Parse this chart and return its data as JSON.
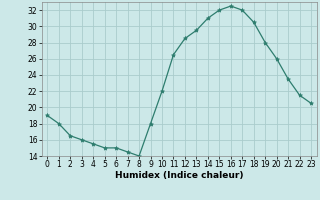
{
  "x": [
    0,
    1,
    2,
    3,
    4,
    5,
    6,
    7,
    8,
    9,
    10,
    11,
    12,
    13,
    14,
    15,
    16,
    17,
    18,
    19,
    20,
    21,
    22,
    23
  ],
  "y": [
    19,
    18,
    16.5,
    16,
    15.5,
    15,
    15,
    14.5,
    14,
    18,
    22,
    26.5,
    28.5,
    29.5,
    31,
    32,
    32.5,
    32,
    30.5,
    28,
    26,
    23.5,
    21.5,
    20.5
  ],
  "line_color": "#2e7d6e",
  "marker": "*",
  "marker_size": 3,
  "bg_color": "#cce8e8",
  "grid_color": "#aacccc",
  "xlabel": "Humidex (Indice chaleur)",
  "ylim": [
    14,
    33
  ],
  "xlim": [
    -0.5,
    23.5
  ],
  "yticks": [
    14,
    16,
    18,
    20,
    22,
    24,
    26,
    28,
    30,
    32
  ],
  "xticks": [
    0,
    1,
    2,
    3,
    4,
    5,
    6,
    7,
    8,
    9,
    10,
    11,
    12,
    13,
    14,
    15,
    16,
    17,
    18,
    19,
    20,
    21,
    22,
    23
  ],
  "tick_fontsize": 5.5,
  "label_fontsize": 6.5
}
